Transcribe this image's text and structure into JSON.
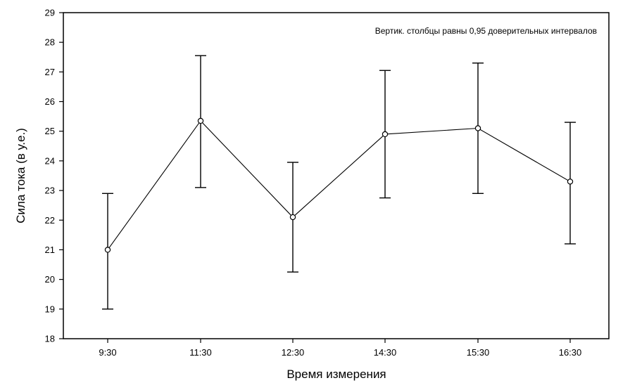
{
  "chart_data": {
    "type": "line",
    "title": "",
    "annotation": "Вертик. столбцы равны 0,95 доверительных интервалов",
    "xlabel": "Время измерения",
    "ylabel": "Сила тока (в у.е.)",
    "categories": [
      "9:30",
      "11:30",
      "12:30",
      "14:30",
      "15:30",
      "16:30"
    ],
    "series": [
      {
        "values": [
          21.0,
          25.35,
          22.1,
          24.9,
          25.1,
          23.3
        ],
        "error_low": [
          19.0,
          23.1,
          20.25,
          22.75,
          22.9,
          21.2
        ],
        "error_high": [
          22.9,
          27.55,
          23.95,
          27.05,
          27.3,
          25.3
        ]
      }
    ],
    "ylim": [
      18,
      29
    ],
    "yticks": [
      18,
      19,
      20,
      21,
      22,
      23,
      24,
      25,
      26,
      27,
      28,
      29
    ],
    "grid": false,
    "colors": {
      "line": "#000000",
      "marker_fill": "#ffffff"
    }
  }
}
